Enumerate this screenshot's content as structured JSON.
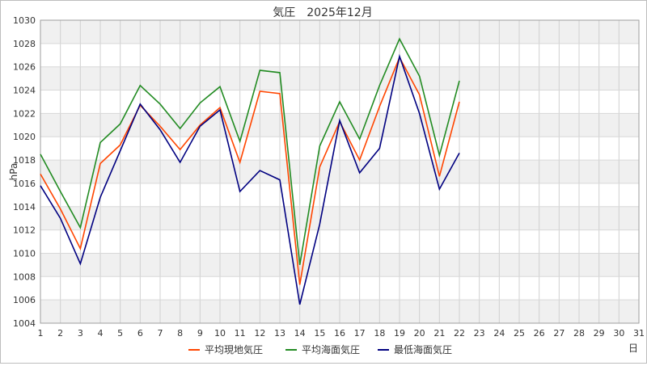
{
  "chart_data": {
    "type": "line",
    "title": "気圧　2025年12月",
    "xlabel": "日",
    "ylabel": "hPa",
    "xlim": [
      1,
      31
    ],
    "ylim": [
      1004,
      1030
    ],
    "x_ticks": [
      1,
      2,
      3,
      4,
      5,
      6,
      7,
      8,
      9,
      10,
      11,
      12,
      13,
      14,
      15,
      16,
      17,
      18,
      19,
      20,
      21,
      22,
      23,
      24,
      25,
      26,
      27,
      28,
      29,
      30,
      31
    ],
    "y_ticks": [
      1004,
      1006,
      1008,
      1010,
      1012,
      1014,
      1016,
      1018,
      1020,
      1022,
      1024,
      1026,
      1028,
      1030
    ],
    "grid": true,
    "legend_position": "bottom",
    "x": [
      1,
      2,
      3,
      4,
      5,
      6,
      7,
      8,
      9,
      10,
      11,
      12,
      13,
      14,
      15,
      16,
      17,
      18,
      19,
      20,
      21,
      22
    ],
    "series": [
      {
        "name": "平均現地気圧",
        "color": "#ff4500",
        "values": [
          1016.8,
          1013.8,
          1010.4,
          1017.7,
          1019.3,
          1022.7,
          1020.9,
          1018.9,
          1021.0,
          1022.5,
          1017.8,
          1023.9,
          1023.7,
          1007.3,
          1017.4,
          1021.3,
          1018.0,
          1022.6,
          1026.8,
          1023.6,
          1016.6,
          1023.0
        ]
      },
      {
        "name": "平均海面気圧",
        "color": "#228b22",
        "values": [
          1018.5,
          1015.3,
          1012.2,
          1019.5,
          1021.1,
          1024.4,
          1022.8,
          1020.7,
          1022.9,
          1024.3,
          1019.6,
          1025.7,
          1025.5,
          1009.0,
          1019.2,
          1023.0,
          1019.8,
          1024.4,
          1028.4,
          1025.2,
          1018.4,
          1024.8
        ]
      },
      {
        "name": "最低海面気圧",
        "color": "#000080",
        "values": [
          1015.8,
          1013.0,
          1009.1,
          1014.8,
          1018.8,
          1022.8,
          1020.6,
          1017.8,
          1020.9,
          1022.3,
          1015.3,
          1017.1,
          1016.3,
          1005.6,
          1012.5,
          1021.4,
          1016.9,
          1019.0,
          1026.9,
          1022.0,
          1015.5,
          1018.6
        ]
      }
    ]
  }
}
